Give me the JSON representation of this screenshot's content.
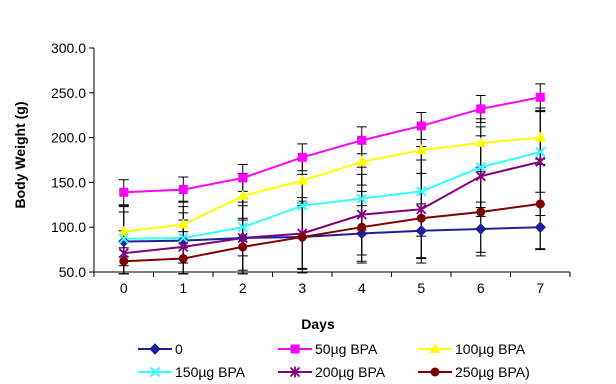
{
  "chart_data": {
    "type": "line",
    "title": "",
    "xlabel": "Days",
    "ylabel": "Body Weight (g)",
    "x": [
      0,
      1,
      2,
      3,
      4,
      5,
      6,
      7
    ],
    "xlim": [
      -0.5,
      7.5
    ],
    "ylim": [
      50,
      300
    ],
    "yticks": [
      "50.0",
      "100.0",
      "150.0",
      "200.0",
      "250.0",
      "300.0"
    ],
    "xticks": [
      "0",
      "1",
      "2",
      "3",
      "4",
      "5",
      "6",
      "7"
    ],
    "grid": false,
    "legend_position": "bottom",
    "series": [
      {
        "name": "0",
        "color": "#1f1f99",
        "marker": "diamond",
        "values": [
          84,
          85,
          88,
          89,
          93,
          96,
          98,
          100
        ],
        "errors": [
          40,
          38,
          36,
          35,
          31,
          30,
          30,
          25
        ]
      },
      {
        "name": "50µg BPA",
        "color": "#ff00ff",
        "marker": "square",
        "values": [
          139,
          142,
          155,
          178,
          197,
          213,
          232,
          245
        ],
        "errors": [
          14,
          14,
          15,
          15,
          15,
          15,
          15,
          15
        ]
      },
      {
        "name": "100µg BPA",
        "color": "#ffff00",
        "marker": "triangle",
        "values": [
          95,
          103,
          135,
          152,
          173,
          186,
          194,
          200
        ],
        "errors": [
          28,
          26,
          25,
          25,
          26,
          26,
          27,
          30
        ]
      },
      {
        "name": "150µg BPA",
        "color": "#33ffff",
        "marker": "x",
        "values": [
          87,
          88,
          100,
          124,
          132,
          140,
          167,
          184
        ],
        "errors": [
          30,
          28,
          32,
          35,
          35,
          50,
          45,
          45
        ]
      },
      {
        "name": "200µg BPA",
        "color": "#800080",
        "marker": "star",
        "values": [
          71,
          78,
          88,
          93,
          114,
          120,
          157,
          173
        ],
        "errors": [
          25,
          30,
          40,
          40,
          45,
          55,
          45,
          60
        ]
      },
      {
        "name": "250µg BPA)",
        "color": "#800000",
        "marker": "circle",
        "values": [
          62,
          65,
          78,
          89,
          100,
          110,
          117,
          126
        ],
        "errors": [
          15,
          30,
          30,
          40,
          40,
          50,
          45,
          50
        ]
      }
    ]
  }
}
